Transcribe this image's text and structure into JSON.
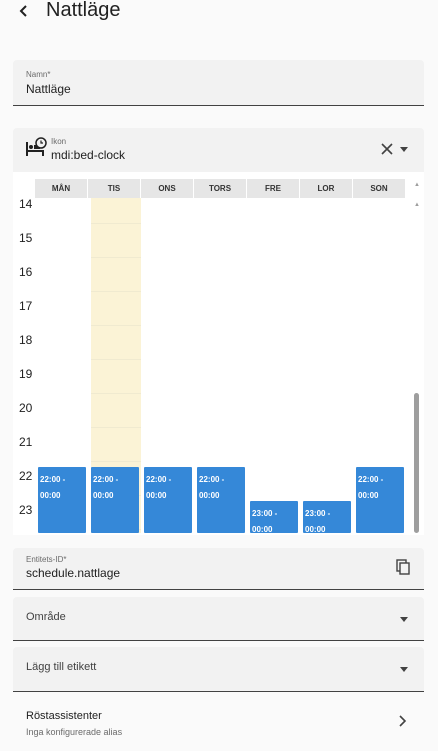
{
  "header": {
    "title": "Nattläge",
    "back_icon": "arrow-back-icon"
  },
  "name_field": {
    "label": "Namn*",
    "value": "Nattläge"
  },
  "icon_field": {
    "label": "Ikon",
    "value": "mdi:bed-clock",
    "icon": "bed-clock-icon"
  },
  "schedule": {
    "days": [
      "MÅN",
      "TIS",
      "ONS",
      "TORS",
      "FRE",
      "LOR",
      "SON"
    ],
    "today_index": 1,
    "hours": [
      "14",
      "15",
      "16",
      "17",
      "18",
      "19",
      "20",
      "21",
      "22",
      "23"
    ],
    "blocks": [
      {
        "day": 0,
        "start": "22:00 -",
        "end": "00:00"
      },
      {
        "day": 1,
        "start": "22:00 -",
        "end": "00:00"
      },
      {
        "day": 2,
        "start": "22:00 -",
        "end": "00:00"
      },
      {
        "day": 3,
        "start": "22:00 -",
        "end": "00:00"
      },
      {
        "day": 4,
        "start": "23:00 -",
        "end": "00:00"
      },
      {
        "day": 5,
        "start": "23:00 -",
        "end": "00:00"
      },
      {
        "day": 6,
        "start": "22:00 -",
        "end": "00:00"
      }
    ],
    "accent_color": "#3588d8",
    "today_color": "#fbf3d6"
  },
  "entity_field": {
    "label": "Entitets-ID*",
    "value": "schedule.nattlage"
  },
  "area_field": {
    "placeholder": "Område"
  },
  "label_field": {
    "placeholder": "Lägg till etikett"
  },
  "voice_assistants": {
    "title": "Röstassistenter",
    "subtitle": "Inga konfigurerade alias"
  }
}
